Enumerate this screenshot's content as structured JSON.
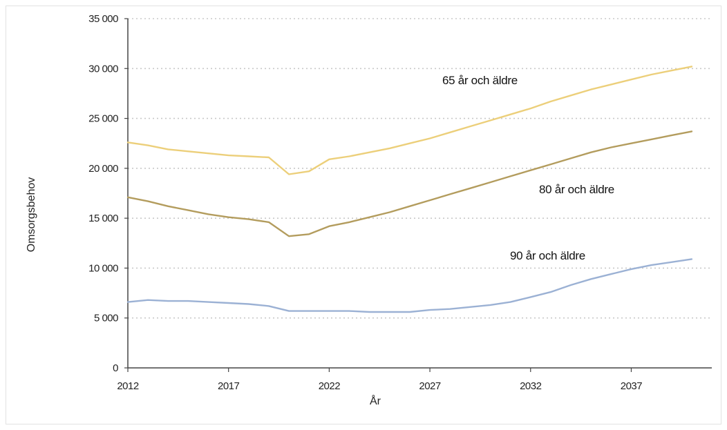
{
  "chart_data": {
    "type": "line",
    "title": "",
    "xlabel": "År",
    "ylabel": "Omsorgsbehov",
    "x": [
      2012,
      2013,
      2014,
      2015,
      2016,
      2017,
      2018,
      2019,
      2020,
      2021,
      2022,
      2023,
      2024,
      2025,
      2026,
      2027,
      2028,
      2029,
      2030,
      2031,
      2032,
      2033,
      2034,
      2035,
      2036,
      2037,
      2038,
      2039,
      2040
    ],
    "xticks": [
      2012,
      2017,
      2022,
      2027,
      2032,
      2037
    ],
    "xtick_labels": [
      "2012",
      "2017",
      "2022",
      "2027",
      "2032",
      "2037"
    ],
    "xlim": [
      2012,
      2041
    ],
    "ylim": [
      0,
      35000
    ],
    "yticks": [
      0,
      5000,
      10000,
      15000,
      20000,
      25000,
      30000,
      35000
    ],
    "ytick_labels": [
      "0",
      "5 000",
      "10 000",
      "15 000",
      "20 000",
      "25 000",
      "30 000",
      "35 000"
    ],
    "grid": "horizontal-dotted",
    "series": [
      {
        "name": "65 år och äldre",
        "color": "#eccf7a",
        "values": [
          22600,
          22300,
          21900,
          21700,
          21500,
          21300,
          21200,
          21100,
          19400,
          19700,
          20900,
          21200,
          21600,
          22000,
          22500,
          23000,
          23600,
          24200,
          24800,
          25400,
          26000,
          26700,
          27300,
          27900,
          28400,
          28900,
          29400,
          29800,
          30200
        ]
      },
      {
        "name": "80 år och äldre",
        "color": "#b39c5d",
        "values": [
          17100,
          16700,
          16200,
          15800,
          15400,
          15100,
          14900,
          14600,
          13200,
          13400,
          14200,
          14600,
          15100,
          15600,
          16200,
          16800,
          17400,
          18000,
          18600,
          19200,
          19800,
          20400,
          21000,
          21600,
          22100,
          22500,
          22900,
          23300,
          23700
        ]
      },
      {
        "name": "90 år och äldre",
        "color": "#9bb1d4",
        "values": [
          6600,
          6800,
          6700,
          6700,
          6600,
          6500,
          6400,
          6200,
          5700,
          5700,
          5700,
          5700,
          5600,
          5600,
          5600,
          5800,
          5900,
          6100,
          6300,
          6600,
          7100,
          7600,
          8300,
          8900,
          9400,
          9900,
          10300,
          10600,
          10900
        ]
      }
    ]
  }
}
